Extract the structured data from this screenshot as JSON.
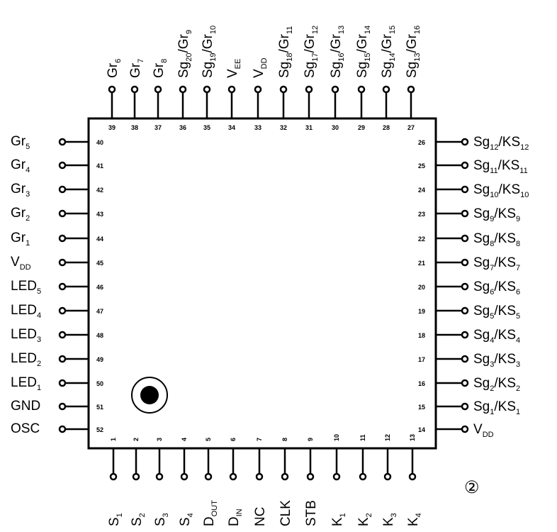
{
  "chip": {
    "top_pins": [
      {
        "num": "39",
        "base": "Gr",
        "sub": "6"
      },
      {
        "num": "38",
        "base": "Gr",
        "sub": "7"
      },
      {
        "num": "37",
        "base": "Gr",
        "sub": "8"
      },
      {
        "num": "36",
        "base": "Sg",
        "sub": "20",
        "base2": "/Gr",
        "sub2": "9"
      },
      {
        "num": "35",
        "base": "Sg",
        "sub": "19",
        "base2": "/Gr",
        "sub2": "10"
      },
      {
        "num": "34",
        "base": "V",
        "sub": "EE"
      },
      {
        "num": "33",
        "base": "V",
        "sub": "DD"
      },
      {
        "num": "32",
        "base": "Sg",
        "sub": "18",
        "base2": "/Gr",
        "sub2": "11"
      },
      {
        "num": "31",
        "base": "Sg",
        "sub": "17",
        "base2": "/Gr",
        "sub2": "12"
      },
      {
        "num": "30",
        "base": "Sg",
        "sub": "16",
        "base2": "/Gr",
        "sub2": "13"
      },
      {
        "num": "29",
        "base": "Sg",
        "sub": "15",
        "base2": "/Gr",
        "sub2": "14"
      },
      {
        "num": "28",
        "base": "Sg",
        "sub": "14",
        "base2": "/Gr",
        "sub2": "15"
      },
      {
        "num": "27",
        "base": "Sg",
        "sub": "13",
        "base2": "/Gr",
        "sub2": "16"
      }
    ],
    "left_pins": [
      {
        "num": "40",
        "base": "Gr",
        "sub": "5"
      },
      {
        "num": "41",
        "base": "Gr",
        "sub": "4"
      },
      {
        "num": "42",
        "base": "Gr",
        "sub": "3"
      },
      {
        "num": "43",
        "base": "Gr",
        "sub": "2"
      },
      {
        "num": "44",
        "base": "Gr",
        "sub": "1"
      },
      {
        "num": "45",
        "base": "V",
        "sub": "DD"
      },
      {
        "num": "46",
        "base": "LED",
        "sub": "5"
      },
      {
        "num": "47",
        "base": "LED",
        "sub": "4"
      },
      {
        "num": "48",
        "base": "LED",
        "sub": "3"
      },
      {
        "num": "49",
        "base": "LED",
        "sub": "2"
      },
      {
        "num": "50",
        "base": "LED",
        "sub": "1"
      },
      {
        "num": "51",
        "base": "GND",
        "sub": ""
      },
      {
        "num": "52",
        "base": "OSC",
        "sub": ""
      }
    ],
    "right_pins": [
      {
        "num": "26",
        "base": "Sg",
        "sub": "12",
        "base2": "/KS",
        "sub2": "12"
      },
      {
        "num": "25",
        "base": "Sg",
        "sub": "11",
        "base2": "/KS",
        "sub2": "11"
      },
      {
        "num": "24",
        "base": "Sg",
        "sub": "10",
        "base2": "/KS",
        "sub2": "10"
      },
      {
        "num": "23",
        "base": "Sg",
        "sub": "9",
        "base2": "/KS",
        "sub2": "9"
      },
      {
        "num": "22",
        "base": "Sg",
        "sub": "8",
        "base2": "/KS",
        "sub2": "8"
      },
      {
        "num": "21",
        "base": "Sg",
        "sub": "7",
        "base2": "/KS",
        "sub2": "7"
      },
      {
        "num": "20",
        "base": "Sg",
        "sub": "6",
        "base2": "/KS",
        "sub2": "6"
      },
      {
        "num": "19",
        "base": "Sg",
        "sub": "5",
        "base2": "/KS",
        "sub2": "5"
      },
      {
        "num": "18",
        "base": "Sg",
        "sub": "4",
        "base2": "/KS",
        "sub2": "4"
      },
      {
        "num": "17",
        "base": "Sg",
        "sub": "3",
        "base2": "/KS",
        "sub2": "3"
      },
      {
        "num": "16",
        "base": "Sg",
        "sub": "2",
        "base2": "/KS",
        "sub2": "2"
      },
      {
        "num": "15",
        "base": "Sg",
        "sub": "1",
        "base2": "/KS",
        "sub2": "1"
      },
      {
        "num": "14",
        "base": "V",
        "sub": "DD"
      }
    ],
    "bottom_pins": [
      {
        "num": "1",
        "base": "S",
        "sub": "1"
      },
      {
        "num": "2",
        "base": "S",
        "sub": "2"
      },
      {
        "num": "3",
        "base": "S",
        "sub": "3"
      },
      {
        "num": "4",
        "base": "S",
        "sub": "4"
      },
      {
        "num": "5",
        "base": "D",
        "sub": "OUT"
      },
      {
        "num": "6",
        "base": "D",
        "sub": "IN"
      },
      {
        "num": "7",
        "base": "NC",
        "sub": ""
      },
      {
        "num": "8",
        "base": "CLK",
        "sub": ""
      },
      {
        "num": "9",
        "base": "STB",
        "sub": ""
      },
      {
        "num": "10",
        "base": "K",
        "sub": "1"
      },
      {
        "num": "11",
        "base": "K",
        "sub": "2"
      },
      {
        "num": "12",
        "base": "K",
        "sub": "3"
      },
      {
        "num": "13",
        "base": "K",
        "sub": "4"
      }
    ]
  },
  "figure_number": "②"
}
